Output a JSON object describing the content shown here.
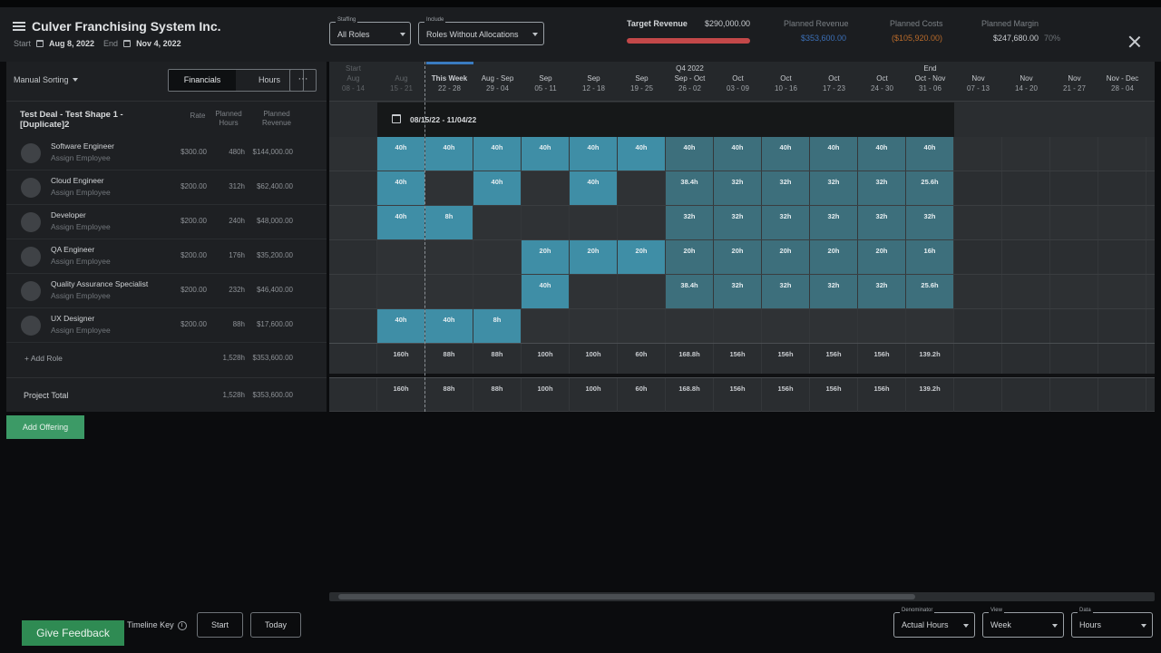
{
  "header": {
    "title": "Culver Franchising System Inc.",
    "start_label": "Start",
    "start_date": "Aug 8, 2022",
    "end_label": "End",
    "end_date": "Nov 4, 2022",
    "staffing": {
      "label": "Staffing",
      "value": "All Roles"
    },
    "include": {
      "label": "Include",
      "value": "Roles Without Allocations"
    },
    "target_revenue_label": "Target Revenue",
    "target_revenue": "$290,000.00",
    "planned_revenue_label": "Planned Revenue",
    "planned_revenue": "$353,600.00",
    "planned_costs_label": "Planned Costs",
    "planned_costs": "($105,920.00)",
    "planned_margin_label": "Planned Margin",
    "planned_margin": "$247,680.00",
    "planned_margin_pct": "70%"
  },
  "toolbar": {
    "sort": "Manual Sorting",
    "financials": "Financials",
    "hours": "Hours",
    "more": "···"
  },
  "deal": {
    "name": "Test Deal - Test Shape 1 - [Duplicate]2",
    "col_rate": "Rate",
    "col_hours": "Planned Hours",
    "col_revenue": "Planned Revenue"
  },
  "roles": [
    {
      "name": "Software Engineer",
      "sub": "Assign Employee",
      "rate": "$300.00",
      "hours": "480h",
      "revenue": "$144,000.00"
    },
    {
      "name": "Cloud Engineer",
      "sub": "Assign Employee",
      "rate": "$200.00",
      "hours": "312h",
      "revenue": "$62,400.00"
    },
    {
      "name": "Developer",
      "sub": "Assign Employee",
      "rate": "$200.00",
      "hours": "240h",
      "revenue": "$48,000.00"
    },
    {
      "name": "QA Engineer",
      "sub": "Assign Employee",
      "rate": "$200.00",
      "hours": "176h",
      "revenue": "$35,200.00"
    },
    {
      "name": "Quality Assurance Specialist",
      "sub": "Assign Employee",
      "rate": "$200.00",
      "hours": "232h",
      "revenue": "$46,400.00"
    },
    {
      "name": "UX Designer",
      "sub": "Assign Employee",
      "rate": "$200.00",
      "hours": "88h",
      "revenue": "$17,600.00"
    }
  ],
  "add_role": "+ Add Role",
  "subtotal_hours": "1,528h",
  "subtotal_revenue": "$353,600.00",
  "project_total": {
    "label": "Project Total",
    "hours": "1,528h",
    "revenue": "$353,600.00"
  },
  "add_offering": "Add Offering",
  "timeline": {
    "columns": [
      {
        "top": "Start",
        "mid": "Aug",
        "bot": "08 - 14"
      },
      {
        "top": "",
        "mid": "Aug",
        "bot": "15 - 21"
      },
      {
        "top": "",
        "mid": "This Week",
        "bot": "22 - 28"
      },
      {
        "top": "",
        "mid": "Aug - Sep",
        "bot": "29 - 04"
      },
      {
        "top": "",
        "mid": "Sep",
        "bot": "05 - 11"
      },
      {
        "top": "",
        "mid": "Sep",
        "bot": "12 - 18"
      },
      {
        "top": "",
        "mid": "Sep",
        "bot": "19 - 25"
      },
      {
        "top": "Q4 2022",
        "mid": "Sep - Oct",
        "bot": "26 - 02"
      },
      {
        "top": "",
        "mid": "Oct",
        "bot": "03 - 09"
      },
      {
        "top": "",
        "mid": "Oct",
        "bot": "10 - 16"
      },
      {
        "top": "",
        "mid": "Oct",
        "bot": "17 - 23"
      },
      {
        "top": "",
        "mid": "Oct",
        "bot": "24 - 30"
      },
      {
        "top": "End",
        "mid": "Oct - Nov",
        "bot": "31 - 06"
      },
      {
        "top": "",
        "mid": "Nov",
        "bot": "07 - 13"
      },
      {
        "top": "",
        "mid": "Nov",
        "bot": "14 - 20"
      },
      {
        "top": "",
        "mid": "Nov",
        "bot": "21 - 27"
      },
      {
        "top": "",
        "mid": "Nov - Dec",
        "bot": "28 - 04"
      }
    ],
    "range": "08/15/22 - 11/04/22",
    "rows": [
      [
        "",
        "40h",
        "40h",
        "40h",
        "40h",
        "40h",
        "40h",
        "40h",
        "40h",
        "40h",
        "40h",
        "40h",
        "40h",
        "",
        "",
        "",
        ""
      ],
      [
        "",
        "40h",
        "",
        "40h",
        "",
        "40h",
        "",
        "38.4h",
        "32h",
        "32h",
        "32h",
        "32h",
        "25.6h",
        "",
        "",
        "",
        ""
      ],
      [
        "",
        "40h",
        "8h",
        "",
        "",
        "",
        "",
        "32h",
        "32h",
        "32h",
        "32h",
        "32h",
        "32h",
        "",
        "",
        "",
        ""
      ],
      [
        "",
        "",
        "",
        "",
        "20h",
        "20h",
        "20h",
        "20h",
        "20h",
        "20h",
        "20h",
        "20h",
        "16h",
        "",
        "",
        "",
        ""
      ],
      [
        "",
        "",
        "",
        "",
        "40h",
        "",
        "",
        "38.4h",
        "32h",
        "32h",
        "32h",
        "32h",
        "25.6h",
        "",
        "",
        "",
        ""
      ],
      [
        "",
        "40h",
        "40h",
        "8h",
        "",
        "",
        "",
        "",
        "",
        "",
        "",
        "",
        "",
        "",
        "",
        "",
        ""
      ]
    ],
    "subtotals": [
      "",
      "160h",
      "88h",
      "88h",
      "100h",
      "100h",
      "60h",
      "168.8h",
      "156h",
      "156h",
      "156h",
      "156h",
      "139.2h",
      "",
      "",
      "",
      ""
    ],
    "totals": [
      "",
      "160h",
      "88h",
      "88h",
      "100h",
      "100h",
      "60h",
      "168.8h",
      "156h",
      "156h",
      "156h",
      "156h",
      "139.2h",
      "",
      "",
      "",
      ""
    ]
  },
  "footer": {
    "feedback": "Give Feedback",
    "timeline_key": "Timeline Key",
    "start": "Start",
    "today": "Today",
    "denominator": {
      "label": "Denominator",
      "value": "Actual Hours"
    },
    "view": {
      "label": "View",
      "value": "Week"
    },
    "data": {
      "label": "Data",
      "value": "Hours"
    }
  },
  "colors": {
    "alloc": "#3f8ea6",
    "alloc_light": "#4b8595",
    "alloc_dim": "#3d6f7c",
    "target_bar": "#c34849",
    "revenue": "#3b6fb6",
    "costs": "#b86a2a"
  }
}
